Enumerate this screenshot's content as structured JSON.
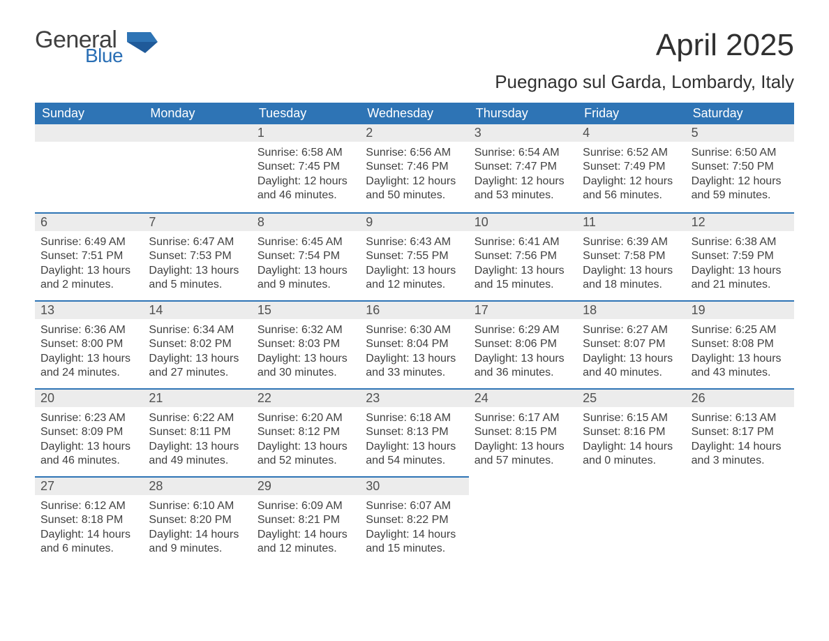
{
  "brand": {
    "line1": "General",
    "line2": "Blue",
    "mark_color": "#2e74b5"
  },
  "title": "April 2025",
  "location": "Puegnago sul Garda, Lombardy, Italy",
  "colors": {
    "header_bg": "#2e74b5",
    "header_fg": "#ffffff",
    "daynum_bg": "#ececec",
    "text": "#404040",
    "row_divider": "#2e74b5"
  },
  "font": {
    "family": "Segoe UI",
    "title_size_pt": 33,
    "location_size_pt": 20,
    "dow_size_pt": 14,
    "body_size_pt": 12
  },
  "days_of_week": [
    "Sunday",
    "Monday",
    "Tuesday",
    "Wednesday",
    "Thursday",
    "Friday",
    "Saturday"
  ],
  "leading_blanks": 2,
  "cells": [
    {
      "n": 1,
      "sunrise": "6:58 AM",
      "sunset": "7:45 PM",
      "daylight": "12 hours and 46 minutes."
    },
    {
      "n": 2,
      "sunrise": "6:56 AM",
      "sunset": "7:46 PM",
      "daylight": "12 hours and 50 minutes."
    },
    {
      "n": 3,
      "sunrise": "6:54 AM",
      "sunset": "7:47 PM",
      "daylight": "12 hours and 53 minutes."
    },
    {
      "n": 4,
      "sunrise": "6:52 AM",
      "sunset": "7:49 PM",
      "daylight": "12 hours and 56 minutes."
    },
    {
      "n": 5,
      "sunrise": "6:50 AM",
      "sunset": "7:50 PM",
      "daylight": "12 hours and 59 minutes."
    },
    {
      "n": 6,
      "sunrise": "6:49 AM",
      "sunset": "7:51 PM",
      "daylight": "13 hours and 2 minutes."
    },
    {
      "n": 7,
      "sunrise": "6:47 AM",
      "sunset": "7:53 PM",
      "daylight": "13 hours and 5 minutes."
    },
    {
      "n": 8,
      "sunrise": "6:45 AM",
      "sunset": "7:54 PM",
      "daylight": "13 hours and 9 minutes."
    },
    {
      "n": 9,
      "sunrise": "6:43 AM",
      "sunset": "7:55 PM",
      "daylight": "13 hours and 12 minutes."
    },
    {
      "n": 10,
      "sunrise": "6:41 AM",
      "sunset": "7:56 PM",
      "daylight": "13 hours and 15 minutes."
    },
    {
      "n": 11,
      "sunrise": "6:39 AM",
      "sunset": "7:58 PM",
      "daylight": "13 hours and 18 minutes."
    },
    {
      "n": 12,
      "sunrise": "6:38 AM",
      "sunset": "7:59 PM",
      "daylight": "13 hours and 21 minutes."
    },
    {
      "n": 13,
      "sunrise": "6:36 AM",
      "sunset": "8:00 PM",
      "daylight": "13 hours and 24 minutes."
    },
    {
      "n": 14,
      "sunrise": "6:34 AM",
      "sunset": "8:02 PM",
      "daylight": "13 hours and 27 minutes."
    },
    {
      "n": 15,
      "sunrise": "6:32 AM",
      "sunset": "8:03 PM",
      "daylight": "13 hours and 30 minutes."
    },
    {
      "n": 16,
      "sunrise": "6:30 AM",
      "sunset": "8:04 PM",
      "daylight": "13 hours and 33 minutes."
    },
    {
      "n": 17,
      "sunrise": "6:29 AM",
      "sunset": "8:06 PM",
      "daylight": "13 hours and 36 minutes."
    },
    {
      "n": 18,
      "sunrise": "6:27 AM",
      "sunset": "8:07 PM",
      "daylight": "13 hours and 40 minutes."
    },
    {
      "n": 19,
      "sunrise": "6:25 AM",
      "sunset": "8:08 PM",
      "daylight": "13 hours and 43 minutes."
    },
    {
      "n": 20,
      "sunrise": "6:23 AM",
      "sunset": "8:09 PM",
      "daylight": "13 hours and 46 minutes."
    },
    {
      "n": 21,
      "sunrise": "6:22 AM",
      "sunset": "8:11 PM",
      "daylight": "13 hours and 49 minutes."
    },
    {
      "n": 22,
      "sunrise": "6:20 AM",
      "sunset": "8:12 PM",
      "daylight": "13 hours and 52 minutes."
    },
    {
      "n": 23,
      "sunrise": "6:18 AM",
      "sunset": "8:13 PM",
      "daylight": "13 hours and 54 minutes."
    },
    {
      "n": 24,
      "sunrise": "6:17 AM",
      "sunset": "8:15 PM",
      "daylight": "13 hours and 57 minutes."
    },
    {
      "n": 25,
      "sunrise": "6:15 AM",
      "sunset": "8:16 PM",
      "daylight": "14 hours and 0 minutes."
    },
    {
      "n": 26,
      "sunrise": "6:13 AM",
      "sunset": "8:17 PM",
      "daylight": "14 hours and 3 minutes."
    },
    {
      "n": 27,
      "sunrise": "6:12 AM",
      "sunset": "8:18 PM",
      "daylight": "14 hours and 6 minutes."
    },
    {
      "n": 28,
      "sunrise": "6:10 AM",
      "sunset": "8:20 PM",
      "daylight": "14 hours and 9 minutes."
    },
    {
      "n": 29,
      "sunrise": "6:09 AM",
      "sunset": "8:21 PM",
      "daylight": "14 hours and 12 minutes."
    },
    {
      "n": 30,
      "sunrise": "6:07 AM",
      "sunset": "8:22 PM",
      "daylight": "14 hours and 15 minutes."
    }
  ],
  "labels": {
    "sunrise": "Sunrise:",
    "sunset": "Sunset:",
    "daylight": "Daylight:"
  }
}
